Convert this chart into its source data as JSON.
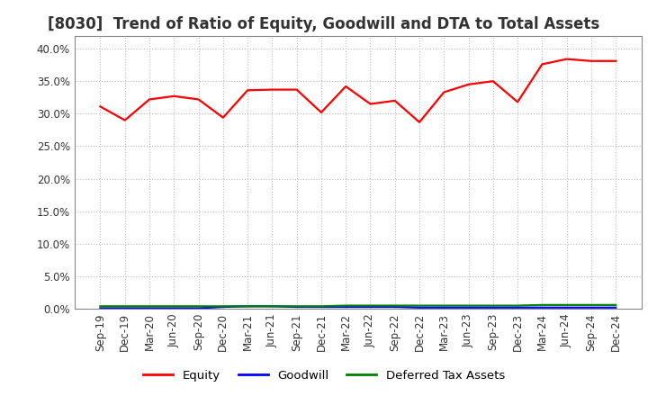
{
  "title": "[8030]  Trend of Ratio of Equity, Goodwill and DTA to Total Assets",
  "x_labels": [
    "Sep-19",
    "Dec-19",
    "Mar-20",
    "Jun-20",
    "Sep-20",
    "Dec-20",
    "Mar-21",
    "Jun-21",
    "Sep-21",
    "Dec-21",
    "Mar-22",
    "Jun-22",
    "Sep-22",
    "Dec-22",
    "Mar-23",
    "Jun-23",
    "Sep-23",
    "Dec-23",
    "Mar-24",
    "Jun-24",
    "Sep-24",
    "Dec-24"
  ],
  "equity": [
    0.311,
    0.29,
    0.322,
    0.327,
    0.322,
    0.294,
    0.336,
    0.337,
    0.337,
    0.302,
    0.342,
    0.315,
    0.32,
    0.287,
    0.333,
    0.345,
    0.35,
    0.318,
    0.376,
    0.384,
    0.381,
    0.381
  ],
  "goodwill": [
    0.001,
    0.001,
    0.001,
    0.001,
    0.001,
    0.003,
    0.004,
    0.004,
    0.003,
    0.003,
    0.003,
    0.003,
    0.003,
    0.002,
    0.002,
    0.002,
    0.002,
    0.002,
    0.002,
    0.002,
    0.002,
    0.002
  ],
  "dta": [
    0.004,
    0.004,
    0.004,
    0.004,
    0.004,
    0.004,
    0.004,
    0.004,
    0.004,
    0.004,
    0.005,
    0.005,
    0.005,
    0.005,
    0.005,
    0.005,
    0.005,
    0.005,
    0.006,
    0.006,
    0.006,
    0.006
  ],
  "equity_color": "#FF0000",
  "goodwill_color": "#0000FF",
  "dta_color": "#008000",
  "ylim": [
    0.0,
    0.42
  ],
  "yticks": [
    0.0,
    0.05,
    0.1,
    0.15,
    0.2,
    0.25,
    0.3,
    0.35,
    0.4
  ],
  "background_color": "#FFFFFF",
  "plot_bg_color": "#FFFFFF",
  "grid_color": "#AAAAAA",
  "legend_labels": [
    "Equity",
    "Goodwill",
    "Deferred Tax Assets"
  ],
  "title_fontsize": 12,
  "axis_fontsize": 8.5,
  "legend_fontsize": 9.5,
  "line_width": 1.6
}
